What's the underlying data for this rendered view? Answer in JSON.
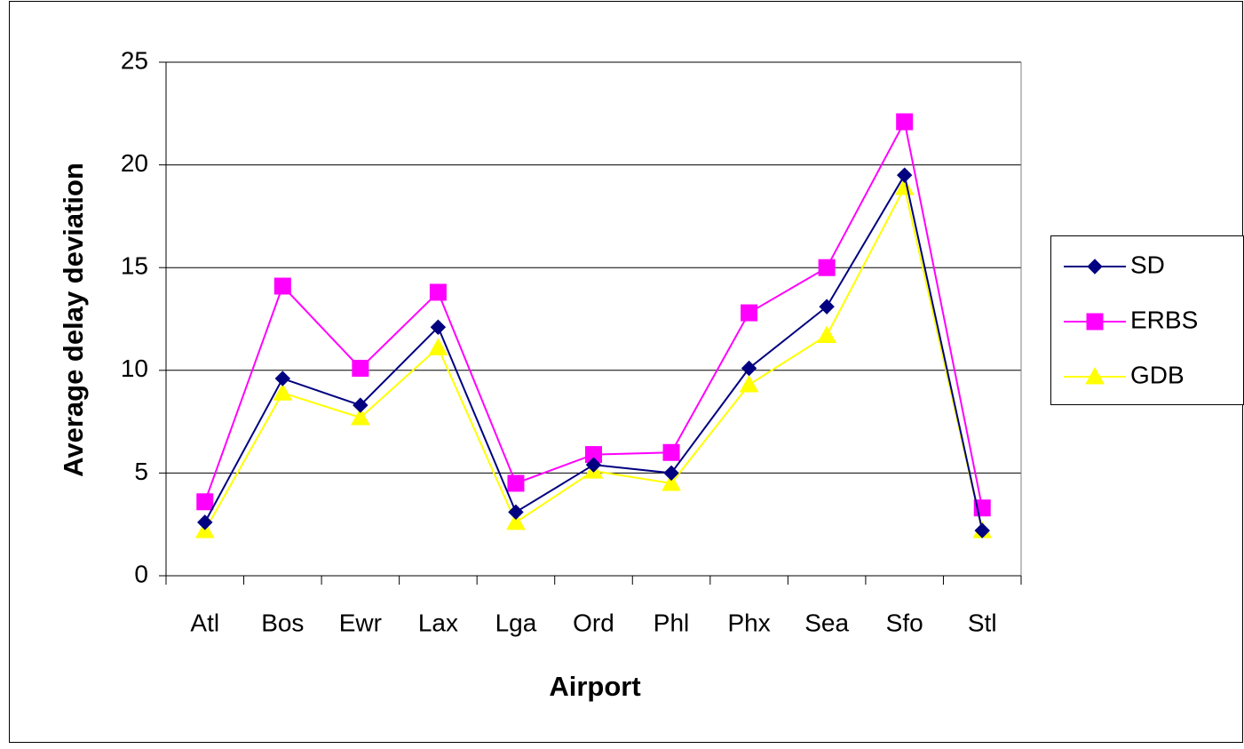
{
  "chart_data": {
    "type": "line",
    "x_label": "Airport",
    "y_label": "Average delay deviation",
    "categories": [
      "Atl",
      "Bos",
      "Ewr",
      "Lax",
      "Lga",
      "Ord",
      "Phl",
      "Phx",
      "Sea",
      "Sfo",
      "Stl"
    ],
    "series": [
      {
        "name": "SD",
        "color": "#000080",
        "marker": "diamond",
        "values": [
          2.6,
          9.6,
          8.3,
          12.1,
          3.1,
          5.4,
          5.0,
          10.1,
          13.1,
          19.5,
          2.2
        ]
      },
      {
        "name": "ERBS",
        "color": "#ff00ff",
        "marker": "square",
        "values": [
          3.6,
          14.1,
          10.1,
          13.8,
          4.5,
          5.9,
          6.0,
          12.8,
          15.0,
          22.1,
          3.3
        ]
      },
      {
        "name": "GDB",
        "color": "#ffff00",
        "marker": "triangle",
        "values": [
          2.2,
          8.9,
          7.7,
          11.1,
          2.6,
          5.1,
          4.5,
          9.3,
          11.7,
          18.9,
          2.2
        ]
      }
    ],
    "ylim": [
      0,
      25
    ],
    "yticks": [
      0,
      5,
      10,
      15,
      20,
      25
    ],
    "grid": true,
    "legend": "right"
  }
}
